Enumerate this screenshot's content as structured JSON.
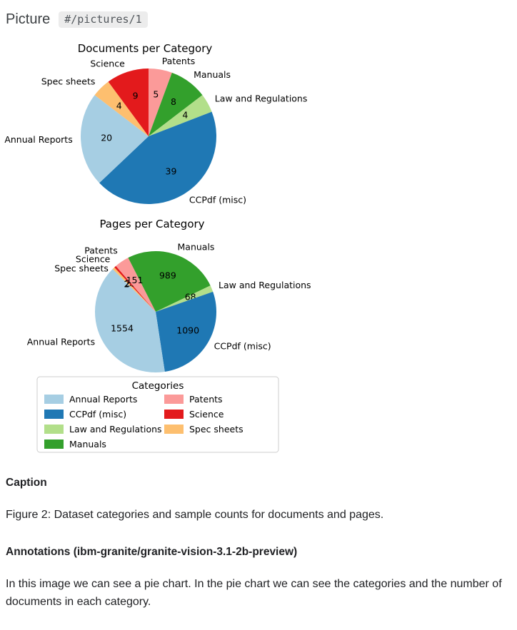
{
  "header": {
    "title": "Picture",
    "path": "#/pictures/1"
  },
  "colors": {
    "Annual Reports": "#a6cee3",
    "CCPdf (misc)": "#1f78b4",
    "Law and Regulations": "#b2df8a",
    "Manuals": "#33a02c",
    "Patents": "#fb9a99",
    "Science": "#e31a1c",
    "Spec sheets": "#fdbf6f"
  },
  "chart_data": [
    {
      "type": "pie",
      "title": "Documents per Category",
      "slices": [
        {
          "label": "Patents",
          "value": 5
        },
        {
          "label": "Manuals",
          "value": 8
        },
        {
          "label": "Law and Regulations",
          "value": 4
        },
        {
          "label": "CCPdf (misc)",
          "value": 39
        },
        {
          "label": "Annual Reports",
          "value": 20
        },
        {
          "label": "Spec sheets",
          "value": 4
        },
        {
          "label": "Science",
          "value": 9
        }
      ]
    },
    {
      "type": "pie",
      "title": "Pages per Category",
      "slices": [
        {
          "label": "Manuals",
          "value": 989
        },
        {
          "label": "Law and Regulations",
          "value": 68
        },
        {
          "label": "CCPdf (misc)",
          "value": 1090
        },
        {
          "label": "Annual Reports",
          "value": 1554
        },
        {
          "label": "Spec sheets",
          "value": 24
        },
        {
          "label": "Science",
          "value": 21
        },
        {
          "label": "Patents",
          "value": 151
        }
      ]
    }
  ],
  "legend": {
    "title": "Categories",
    "labels": [
      "Annual Reports",
      "CCPdf (misc)",
      "Law and Regulations",
      "Manuals",
      "Patents",
      "Science",
      "Spec sheets"
    ]
  },
  "sections": {
    "caption_heading": "Caption",
    "caption_text": "Figure 2: Dataset categories and sample counts for documents and pages.",
    "annotations_heading": "Annotations (ibm-granite/granite-vision-3.1-2b-preview)",
    "annotation_text": "In this image we can see a pie chart. In the pie chart we can see the categories and the number of documents in each category."
  }
}
